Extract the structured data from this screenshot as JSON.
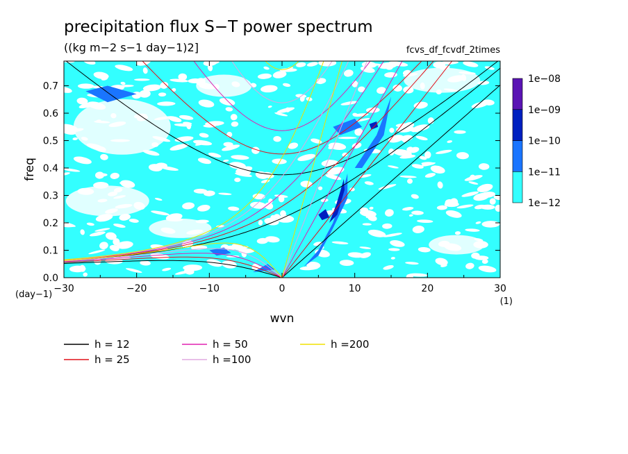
{
  "chart_data": {
    "type": "heatmap",
    "title": "precipitation flux S−T power spectrum",
    "subtitle": "((kg m−2 s−1 day−1)2]",
    "tag": "fcvs_df_fcvdf_2times",
    "xlabel": "wvn",
    "ylabel": "freq",
    "xunit": "(1)",
    "yunit": "(day−1)",
    "xlim": [
      -30,
      30
    ],
    "ylim": [
      0,
      0.79
    ],
    "xticks": [
      -30,
      -20,
      -10,
      0,
      10,
      20,
      30
    ],
    "xtick_labels": [
      "−30",
      "−20",
      "−10",
      "0",
      "10",
      "20",
      "30"
    ],
    "yticks": [
      0,
      0.1,
      0.2,
      0.3,
      0.4,
      0.5,
      0.6,
      0.7
    ],
    "ytick_labels": [
      "0.0",
      "0.1",
      "0.2",
      "0.3",
      "0.4",
      "0.5",
      "0.6",
      "0.7"
    ],
    "colorbar": {
      "levels": [
        "1e−12",
        "1e−11",
        "1e−10",
        "1e−09",
        "1e−08"
      ],
      "colors": [
        "#33ffff",
        "#1a75ff",
        "#0020c0",
        "#5a14b4"
      ]
    },
    "contour_regions": [
      {
        "level": 1,
        "points": [
          [
            3,
            0.04
          ],
          [
            5,
            0.1
          ],
          [
            7,
            0.2
          ],
          [
            8,
            0.28
          ],
          [
            9,
            0.38
          ],
          [
            9,
            0.29
          ],
          [
            7,
            0.18
          ],
          [
            5,
            0.08
          ]
        ]
      },
      {
        "level": 1,
        "points": [
          [
            10,
            0.4
          ],
          [
            13,
            0.52
          ],
          [
            15,
            0.66
          ],
          [
            14,
            0.52
          ],
          [
            11,
            0.4
          ]
        ]
      },
      {
        "level": 1,
        "points": [
          [
            -10,
            0.1
          ],
          [
            -8,
            0.11
          ],
          [
            -7,
            0.09
          ],
          [
            -9,
            0.08
          ]
        ]
      },
      {
        "level": 1,
        "points": [
          [
            -27,
            0.68
          ],
          [
            -24,
            0.7
          ],
          [
            -20,
            0.67
          ],
          [
            -24,
            0.64
          ]
        ]
      },
      {
        "level": 1,
        "points": [
          [
            7,
            0.55
          ],
          [
            10,
            0.58
          ],
          [
            11,
            0.55
          ],
          [
            8,
            0.52
          ]
        ]
      },
      {
        "level": 1,
        "points": [
          [
            -4,
            0.02
          ],
          [
            -2,
            0.05
          ],
          [
            -1,
            0.03
          ]
        ]
      },
      {
        "level": 2,
        "points": [
          [
            6.5,
            0.2
          ],
          [
            7.5,
            0.27
          ],
          [
            8.5,
            0.36
          ],
          [
            8.6,
            0.32
          ],
          [
            7.6,
            0.23
          ]
        ]
      },
      {
        "level": 2,
        "points": [
          [
            5,
            0.23
          ],
          [
            6,
            0.25
          ],
          [
            6.5,
            0.22
          ],
          [
            5.5,
            0.21
          ]
        ]
      },
      {
        "level": 2,
        "points": [
          [
            12,
            0.56
          ],
          [
            13,
            0.57
          ],
          [
            13.2,
            0.55
          ],
          [
            12.3,
            0.54
          ]
        ]
      }
    ],
    "dispersion_series": [
      {
        "name": "h = 12",
        "color": "#000000"
      },
      {
        "name": "h = 25",
        "color": "#e0101a"
      },
      {
        "name": "h = 50",
        "color": "#e020b0"
      },
      {
        "name": "h =100",
        "color": "#e0a8e0"
      },
      {
        "name": "h =200",
        "color": "#f0e000"
      }
    ]
  }
}
